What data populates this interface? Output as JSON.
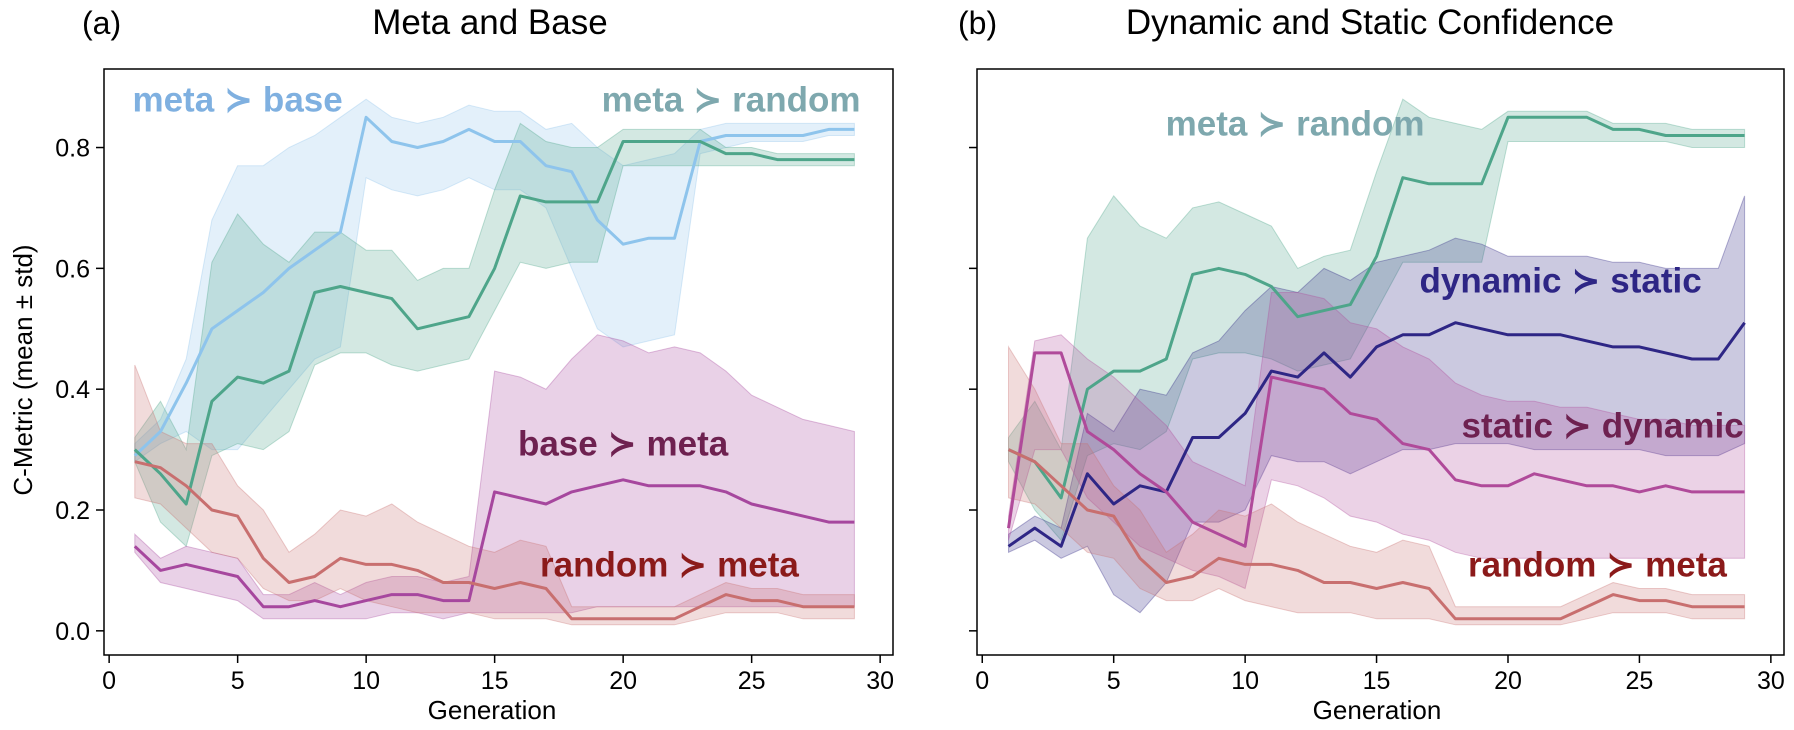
{
  "figure": {
    "ylabel": "C-Metric (mean ± std)"
  },
  "colors": {
    "meta_base": "#8ec4ec",
    "meta_random": "#4ea58a",
    "base_meta": "#a6479e",
    "random_meta": "#c86f6f",
    "dynamic_static": "#2e2685",
    "static_dynamic": "#b04a9a",
    "ann_meta_base": "#7fb0e0",
    "ann_meta_random": "#7ea8ae",
    "ann_base_meta": "#6e2150",
    "ann_random_meta": "#8b1a1a",
    "ann_dynamic_static": "#2e2685",
    "ann_static_dynamic": "#6e2150"
  },
  "chart_data": [
    {
      "type": "line",
      "panel": "(a)",
      "title": "Meta and Base",
      "xlabel": "Generation",
      "ylabel": "C-Metric (mean ± std)",
      "xlim": [
        -0.2,
        30.5
      ],
      "ylim": [
        -0.04,
        0.93
      ],
      "xticks": [
        "0",
        "5",
        "10",
        "15",
        "20",
        "25",
        "30"
      ],
      "yticks": [
        "0.0",
        "0.2",
        "0.4",
        "0.6",
        "0.8"
      ],
      "grid": false,
      "x": [
        1,
        2,
        3,
        4,
        5,
        6,
        7,
        8,
        9,
        10,
        11,
        12,
        13,
        14,
        15,
        16,
        17,
        18,
        19,
        20,
        21,
        22,
        23,
        24,
        25,
        26,
        27,
        28,
        29
      ],
      "series": [
        {
          "name": "meta ≻ base",
          "color_key": "meta_base",
          "mean": [
            0.29,
            0.33,
            0.41,
            0.5,
            0.53,
            0.56,
            0.6,
            0.63,
            0.66,
            0.85,
            0.81,
            0.8,
            0.81,
            0.83,
            0.81,
            0.81,
            0.77,
            0.76,
            0.68,
            0.64,
            0.65,
            0.65,
            0.81,
            0.82,
            0.82,
            0.82,
            0.82,
            0.83,
            0.83
          ],
          "lower": [
            0.28,
            0.31,
            0.33,
            0.3,
            0.3,
            0.35,
            0.4,
            0.45,
            0.47,
            0.75,
            0.73,
            0.72,
            0.73,
            0.75,
            0.73,
            0.73,
            0.7,
            0.6,
            0.5,
            0.47,
            0.48,
            0.49,
            0.79,
            0.8,
            0.81,
            0.81,
            0.81,
            0.82,
            0.82
          ],
          "upper": [
            0.31,
            0.35,
            0.45,
            0.68,
            0.77,
            0.77,
            0.8,
            0.82,
            0.85,
            0.88,
            0.85,
            0.84,
            0.85,
            0.87,
            0.86,
            0.86,
            0.83,
            0.84,
            0.8,
            0.77,
            0.78,
            0.79,
            0.83,
            0.84,
            0.84,
            0.84,
            0.84,
            0.84,
            0.84
          ]
        },
        {
          "name": "meta ≻ random",
          "color_key": "meta_random",
          "mean": [
            0.3,
            0.26,
            0.21,
            0.38,
            0.42,
            0.41,
            0.43,
            0.56,
            0.57,
            0.56,
            0.55,
            0.5,
            0.51,
            0.52,
            0.6,
            0.72,
            0.71,
            0.71,
            0.71,
            0.81,
            0.81,
            0.81,
            0.81,
            0.79,
            0.79,
            0.78,
            0.78,
            0.78,
            0.78
          ],
          "lower": [
            0.28,
            0.18,
            0.14,
            0.29,
            0.31,
            0.3,
            0.33,
            0.44,
            0.46,
            0.46,
            0.44,
            0.43,
            0.44,
            0.45,
            0.53,
            0.61,
            0.6,
            0.61,
            0.61,
            0.77,
            0.77,
            0.77,
            0.77,
            0.77,
            0.77,
            0.77,
            0.77,
            0.77,
            0.77
          ],
          "upper": [
            0.32,
            0.38,
            0.3,
            0.61,
            0.69,
            0.64,
            0.61,
            0.66,
            0.66,
            0.63,
            0.63,
            0.58,
            0.6,
            0.6,
            0.73,
            0.84,
            0.81,
            0.8,
            0.8,
            0.83,
            0.83,
            0.83,
            0.83,
            0.8,
            0.8,
            0.79,
            0.79,
            0.79,
            0.79
          ]
        },
        {
          "name": "base ≻ meta",
          "color_key": "base_meta",
          "mean": [
            0.14,
            0.1,
            0.11,
            0.1,
            0.09,
            0.04,
            0.04,
            0.05,
            0.04,
            0.05,
            0.06,
            0.06,
            0.05,
            0.05,
            0.23,
            0.22,
            0.21,
            0.23,
            0.24,
            0.25,
            0.24,
            0.24,
            0.24,
            0.23,
            0.21,
            0.2,
            0.19,
            0.18,
            0.18
          ],
          "lower": [
            0.13,
            0.08,
            0.07,
            0.06,
            0.05,
            0.02,
            0.02,
            0.02,
            0.02,
            0.02,
            0.03,
            0.03,
            0.02,
            0.03,
            0.03,
            0.03,
            0.03,
            0.03,
            0.04,
            0.04,
            0.04,
            0.04,
            0.04,
            0.04,
            0.04,
            0.04,
            0.04,
            0.04,
            0.04
          ],
          "upper": [
            0.16,
            0.12,
            0.14,
            0.13,
            0.12,
            0.06,
            0.06,
            0.08,
            0.06,
            0.08,
            0.09,
            0.09,
            0.08,
            0.09,
            0.43,
            0.42,
            0.4,
            0.45,
            0.49,
            0.48,
            0.46,
            0.47,
            0.46,
            0.43,
            0.39,
            0.37,
            0.35,
            0.34,
            0.33
          ]
        },
        {
          "name": "random ≻ meta",
          "color_key": "random_meta",
          "mean": [
            0.28,
            0.27,
            0.24,
            0.2,
            0.19,
            0.12,
            0.08,
            0.09,
            0.12,
            0.11,
            0.11,
            0.1,
            0.08,
            0.08,
            0.07,
            0.08,
            0.07,
            0.02,
            0.02,
            0.02,
            0.02,
            0.02,
            0.04,
            0.06,
            0.05,
            0.05,
            0.04,
            0.04,
            0.04
          ],
          "lower": [
            0.22,
            0.21,
            0.17,
            0.13,
            0.12,
            0.07,
            0.05,
            0.05,
            0.07,
            0.05,
            0.04,
            0.03,
            0.03,
            0.03,
            0.02,
            0.02,
            0.02,
            0.01,
            0.01,
            0.01,
            0.01,
            0.01,
            0.02,
            0.03,
            0.03,
            0.03,
            0.02,
            0.02,
            0.02
          ],
          "upper": [
            0.44,
            0.33,
            0.31,
            0.31,
            0.24,
            0.2,
            0.13,
            0.16,
            0.2,
            0.19,
            0.21,
            0.18,
            0.16,
            0.14,
            0.13,
            0.15,
            0.14,
            0.04,
            0.04,
            0.04,
            0.04,
            0.04,
            0.06,
            0.08,
            0.07,
            0.07,
            0.06,
            0.06,
            0.06
          ]
        }
      ],
      "annotations": [
        {
          "text": "meta ≻ base",
          "color_key": "ann_meta_base",
          "x": 5,
          "y": 0.86
        },
        {
          "text": "meta ≻ random",
          "color_key": "ann_meta_random",
          "x": 24.2,
          "y": 0.86
        },
        {
          "text": "base ≻ meta",
          "color_key": "ann_base_meta",
          "x": 20.0,
          "y": 0.29
        },
        {
          "text": "random ≻ meta",
          "color_key": "ann_random_meta",
          "x": 21.8,
          "y": 0.09
        }
      ]
    },
    {
      "type": "line",
      "panel": "(b)",
      "title": "Dynamic and Static Confidence",
      "xlabel": "Generation",
      "ylabel": "",
      "xlim": [
        -0.2,
        30.5
      ],
      "ylim": [
        -0.04,
        0.93
      ],
      "xticks": [
        "0",
        "5",
        "10",
        "15",
        "20",
        "25",
        "30"
      ],
      "yticks": [],
      "grid": false,
      "x": [
        1,
        2,
        3,
        4,
        5,
        6,
        7,
        8,
        9,
        10,
        11,
        12,
        13,
        14,
        15,
        16,
        17,
        18,
        19,
        20,
        21,
        22,
        23,
        24,
        25,
        26,
        27,
        28,
        29
      ],
      "series": [
        {
          "name": "meta ≻ random",
          "color_key": "meta_random",
          "mean": [
            0.3,
            0.28,
            0.22,
            0.4,
            0.43,
            0.43,
            0.45,
            0.59,
            0.6,
            0.59,
            0.57,
            0.52,
            0.53,
            0.54,
            0.62,
            0.75,
            0.74,
            0.74,
            0.74,
            0.85,
            0.85,
            0.85,
            0.85,
            0.83,
            0.83,
            0.82,
            0.82,
            0.82,
            0.82
          ],
          "lower": [
            0.28,
            0.2,
            0.15,
            0.29,
            0.31,
            0.3,
            0.33,
            0.45,
            0.46,
            0.46,
            0.45,
            0.43,
            0.44,
            0.45,
            0.53,
            0.61,
            0.61,
            0.61,
            0.61,
            0.81,
            0.81,
            0.81,
            0.81,
            0.81,
            0.81,
            0.81,
            0.8,
            0.8,
            0.8
          ],
          "upper": [
            0.32,
            0.38,
            0.3,
            0.65,
            0.72,
            0.67,
            0.65,
            0.7,
            0.71,
            0.69,
            0.67,
            0.6,
            0.62,
            0.63,
            0.76,
            0.88,
            0.85,
            0.84,
            0.83,
            0.86,
            0.86,
            0.86,
            0.86,
            0.84,
            0.84,
            0.84,
            0.83,
            0.83,
            0.83
          ]
        },
        {
          "name": "dynamic ≻ static",
          "color_key": "dynamic_static",
          "mean": [
            0.14,
            0.17,
            0.14,
            0.26,
            0.21,
            0.24,
            0.23,
            0.32,
            0.32,
            0.36,
            0.43,
            0.42,
            0.46,
            0.42,
            0.47,
            0.49,
            0.49,
            0.51,
            0.5,
            0.49,
            0.49,
            0.49,
            0.48,
            0.47,
            0.47,
            0.46,
            0.45,
            0.45,
            0.51
          ],
          "lower": [
            0.13,
            0.15,
            0.12,
            0.14,
            0.06,
            0.03,
            0.08,
            0.18,
            0.18,
            0.2,
            0.29,
            0.28,
            0.28,
            0.26,
            0.28,
            0.3,
            0.3,
            0.31,
            0.31,
            0.31,
            0.3,
            0.3,
            0.3,
            0.3,
            0.3,
            0.29,
            0.29,
            0.29,
            0.31
          ],
          "upper": [
            0.16,
            0.19,
            0.17,
            0.36,
            0.33,
            0.4,
            0.39,
            0.46,
            0.48,
            0.53,
            0.57,
            0.56,
            0.6,
            0.58,
            0.61,
            0.62,
            0.63,
            0.65,
            0.64,
            0.62,
            0.62,
            0.62,
            0.62,
            0.61,
            0.61,
            0.6,
            0.6,
            0.6,
            0.72
          ]
        },
        {
          "name": "static ≻ dynamic",
          "color_key": "static_dynamic",
          "mean": [
            0.17,
            0.46,
            0.46,
            0.33,
            0.3,
            0.26,
            0.23,
            0.18,
            0.16,
            0.14,
            0.42,
            0.41,
            0.4,
            0.36,
            0.35,
            0.31,
            0.3,
            0.25,
            0.24,
            0.24,
            0.26,
            0.25,
            0.24,
            0.24,
            0.23,
            0.24,
            0.23,
            0.23,
            0.23
          ],
          "lower": [
            0.15,
            0.3,
            0.3,
            0.22,
            0.18,
            0.14,
            0.12,
            0.1,
            0.09,
            0.07,
            0.25,
            0.24,
            0.22,
            0.19,
            0.18,
            0.16,
            0.15,
            0.13,
            0.12,
            0.12,
            0.12,
            0.12,
            0.12,
            0.12,
            0.12,
            0.12,
            0.12,
            0.12,
            0.12
          ],
          "upper": [
            0.19,
            0.48,
            0.49,
            0.45,
            0.42,
            0.38,
            0.34,
            0.28,
            0.26,
            0.24,
            0.56,
            0.56,
            0.55,
            0.51,
            0.5,
            0.47,
            0.45,
            0.41,
            0.39,
            0.38,
            0.38,
            0.37,
            0.37,
            0.36,
            0.35,
            0.35,
            0.34,
            0.34,
            0.34
          ]
        },
        {
          "name": "random ≻ meta",
          "color_key": "random_meta",
          "mean": [
            0.3,
            0.28,
            0.24,
            0.2,
            0.19,
            0.12,
            0.08,
            0.09,
            0.12,
            0.11,
            0.11,
            0.1,
            0.08,
            0.08,
            0.07,
            0.08,
            0.07,
            0.02,
            0.02,
            0.02,
            0.02,
            0.02,
            0.04,
            0.06,
            0.05,
            0.05,
            0.04,
            0.04,
            0.04
          ],
          "lower": [
            0.22,
            0.21,
            0.17,
            0.13,
            0.12,
            0.07,
            0.05,
            0.05,
            0.07,
            0.05,
            0.04,
            0.03,
            0.03,
            0.03,
            0.02,
            0.02,
            0.02,
            0.01,
            0.01,
            0.01,
            0.01,
            0.01,
            0.02,
            0.03,
            0.03,
            0.03,
            0.02,
            0.02,
            0.02
          ],
          "upper": [
            0.47,
            0.4,
            0.31,
            0.31,
            0.24,
            0.2,
            0.13,
            0.16,
            0.2,
            0.19,
            0.21,
            0.18,
            0.16,
            0.14,
            0.13,
            0.15,
            0.14,
            0.04,
            0.04,
            0.04,
            0.04,
            0.04,
            0.06,
            0.08,
            0.07,
            0.07,
            0.06,
            0.06,
            0.06
          ]
        }
      ],
      "annotations": [
        {
          "text": "meta ≻ random",
          "color_key": "ann_meta_random",
          "x": 11.9,
          "y": 0.82
        },
        {
          "text": "dynamic ≻ static",
          "color_key": "ann_dynamic_static",
          "x": 22.0,
          "y": 0.56
        },
        {
          "text": "static ≻ dynamic",
          "color_key": "ann_static_dynamic",
          "x": 23.6,
          "y": 0.32
        },
        {
          "text": "random ≻ meta",
          "color_key": "ann_random_meta",
          "x": 23.4,
          "y": 0.09
        }
      ]
    }
  ]
}
